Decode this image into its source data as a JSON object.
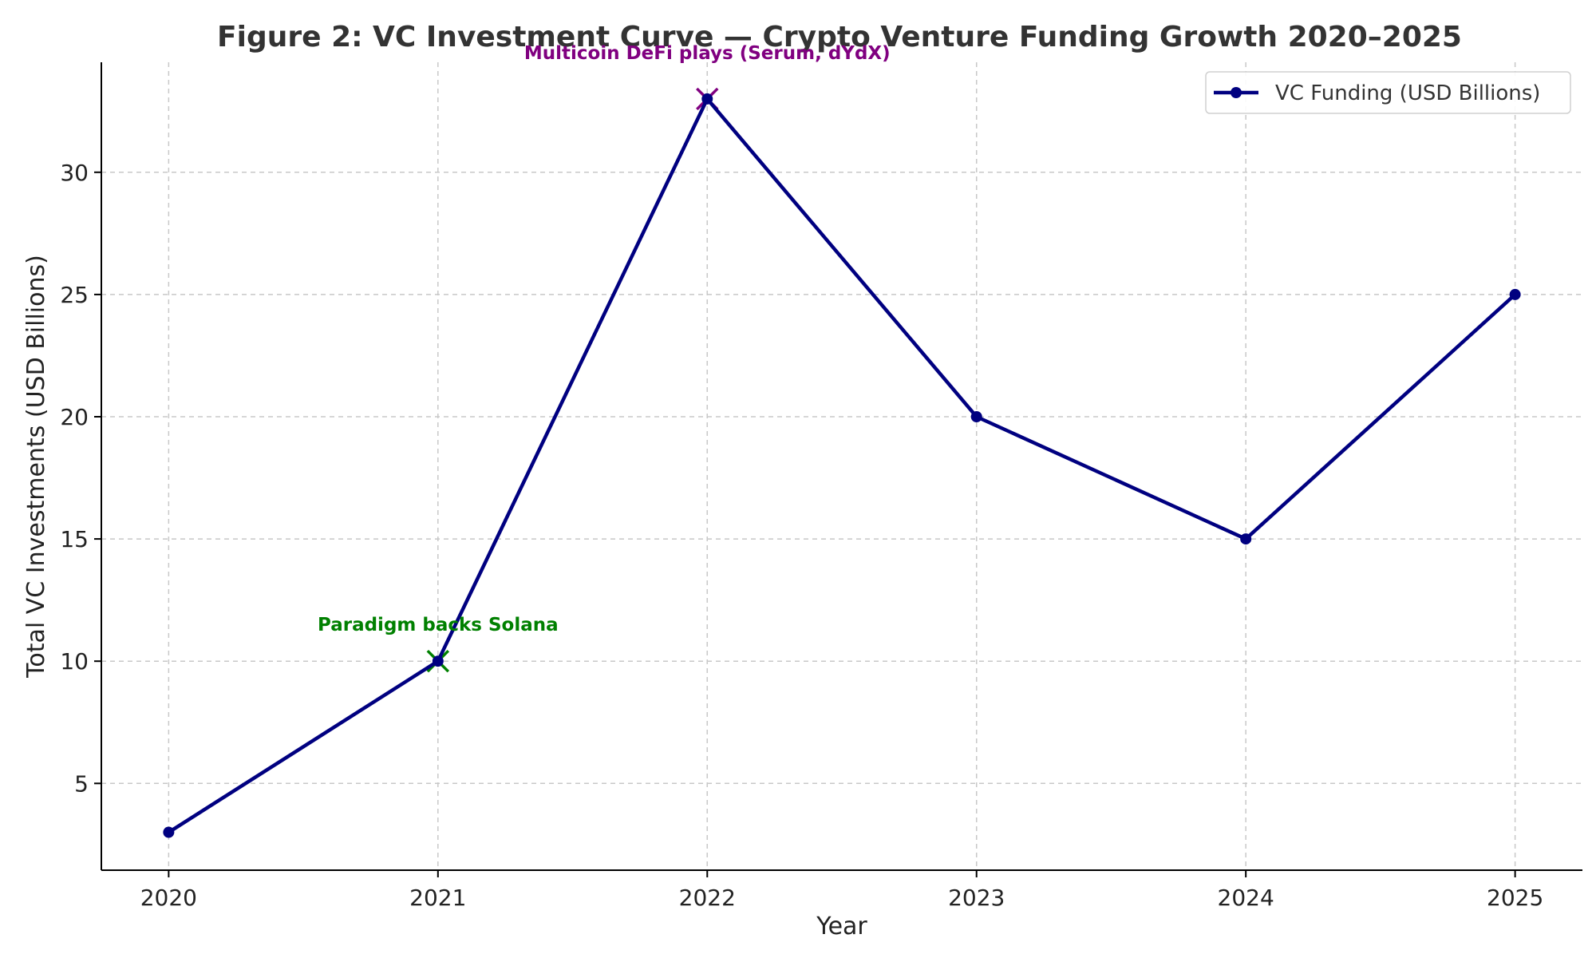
{
  "chart_data": {
    "type": "line",
    "title": "Figure 2: VC Investment Curve — Crypto Venture Funding Growth 2020–2025",
    "xlabel": "Year",
    "ylabel": "Total VC Investments (USD Billions)",
    "x": [
      2020,
      2021,
      2022,
      2023,
      2024,
      2025
    ],
    "x_tick_labels": [
      "2020",
      "2021",
      "2022",
      "2023",
      "2024",
      "2025"
    ],
    "xlim": [
      2019.75,
      2025.25
    ],
    "ylim": [
      1.45,
      34.5
    ],
    "y_ticks": [
      5,
      10,
      15,
      20,
      25,
      30
    ],
    "y_tick_labels": [
      "5",
      "10",
      "15",
      "20",
      "25",
      "30"
    ],
    "grid": true,
    "legend_position": "top-right",
    "series": [
      {
        "name": "VC Funding (USD Billions)",
        "color": "#000080",
        "marker": "circle",
        "values": [
          3,
          10,
          33,
          20,
          15,
          25
        ]
      }
    ],
    "annotations": [
      {
        "text": "Paradigm backs Solana",
        "x": 2021,
        "y": 10,
        "color": "#008000",
        "marker": "x"
      },
      {
        "text": "Multicoin DeFi plays (Serum, dYdX)",
        "x": 2022,
        "y": 33,
        "color": "#800080",
        "marker": "x"
      }
    ]
  }
}
